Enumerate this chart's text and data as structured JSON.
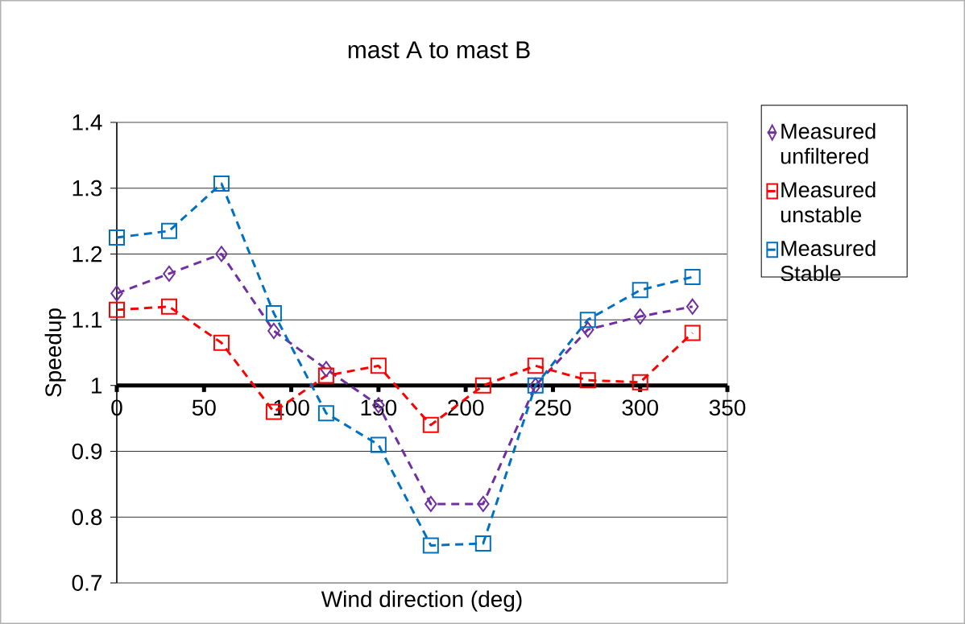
{
  "chart_data": {
    "type": "line",
    "title": "mast A to mast B",
    "xlabel": "Wind direction (deg)",
    "ylabel": "Speedup",
    "x": [
      0,
      30,
      60,
      90,
      120,
      150,
      180,
      210,
      240,
      270,
      300,
      330
    ],
    "series": [
      {
        "name": "Measured unfiltered",
        "color": "#7030a0",
        "marker": "diamond",
        "values": [
          1.14,
          1.17,
          1.2,
          1.083,
          1.025,
          0.97,
          0.82,
          0.82,
          1.0,
          1.085,
          1.105,
          1.12
        ]
      },
      {
        "name": "Measured unstable",
        "color": "#ff0000",
        "marker": "square",
        "values": [
          1.115,
          1.12,
          1.065,
          0.96,
          1.015,
          1.03,
          0.94,
          1.0,
          1.03,
          1.008,
          1.005,
          1.08
        ]
      },
      {
        "name": "Measured Stable",
        "color": "#0070c0",
        "marker": "square",
        "values": [
          1.225,
          1.235,
          1.307,
          1.11,
          0.958,
          0.91,
          0.757,
          0.76,
          1.0,
          1.1,
          1.145,
          1.165
        ]
      }
    ],
    "line_style": "dashed",
    "xlim": [
      0,
      350
    ],
    "xticks": [
      0,
      50,
      100,
      150,
      200,
      250,
      300,
      350
    ],
    "ylim": [
      0.7,
      1.4
    ],
    "yticks": [
      {
        "value": 0.7,
        "label": "0.7"
      },
      {
        "value": 0.8,
        "label": "0.8"
      },
      {
        "value": 0.9,
        "label": "0.9"
      },
      {
        "value": 1.0,
        "label": "1"
      },
      {
        "value": 1.1,
        "label": "1.1"
      },
      {
        "value": 1.2,
        "label": "1.2"
      },
      {
        "value": 1.3,
        "label": "1.3"
      },
      {
        "value": 1.4,
        "label": "1.4"
      }
    ],
    "grid": "y",
    "legend": "right"
  }
}
